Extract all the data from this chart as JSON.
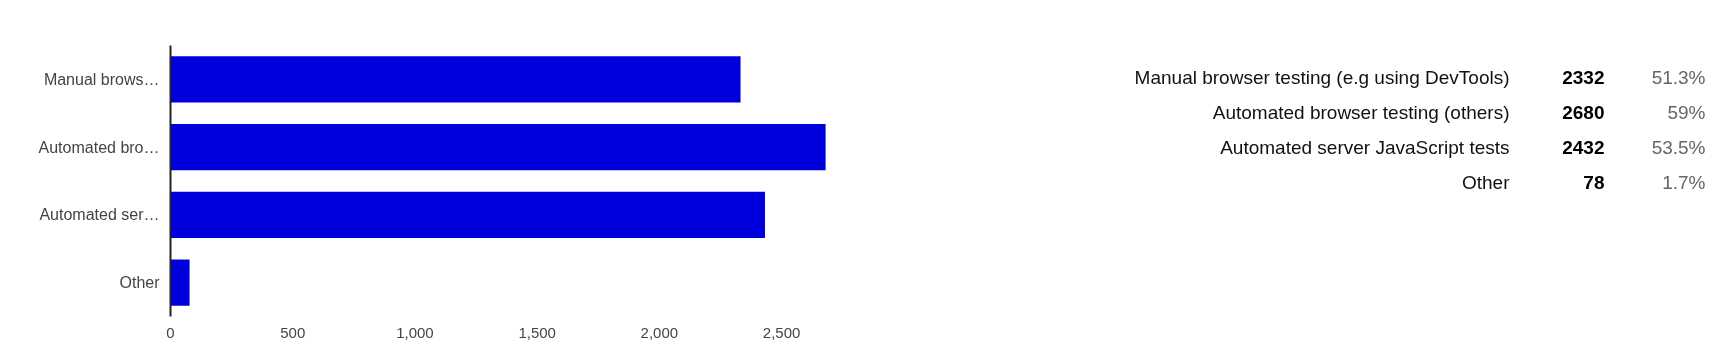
{
  "chart_data": {
    "type": "bar",
    "orientation": "horizontal",
    "categories": [
      "Manual brows…",
      "Automated bro…",
      "Automated ser…",
      "Other"
    ],
    "values": [
      2332,
      2680,
      2432,
      78
    ],
    "color": "#0000dd",
    "xlim": [
      0,
      2700
    ],
    "xticks": [
      0,
      {
        "value": 500,
        "label": "500"
      },
      {
        "value": 1000,
        "label": "1,000"
      },
      {
        "value": 1500,
        "label": "1,500"
      },
      {
        "value": 2000,
        "label": "2,000"
      },
      {
        "value": 2500,
        "label": "2,500"
      }
    ],
    "grid": false,
    "annotations": [
      "Manual browser testing (e.g using DevTools)",
      "Automated browser testing (others)",
      "Automated server JavaScript tests",
      "Other",
      "2332",
      "2680",
      "2432",
      "78",
      "51.3%",
      "59%",
      "53.5%",
      "1.7%"
    ]
  }
}
